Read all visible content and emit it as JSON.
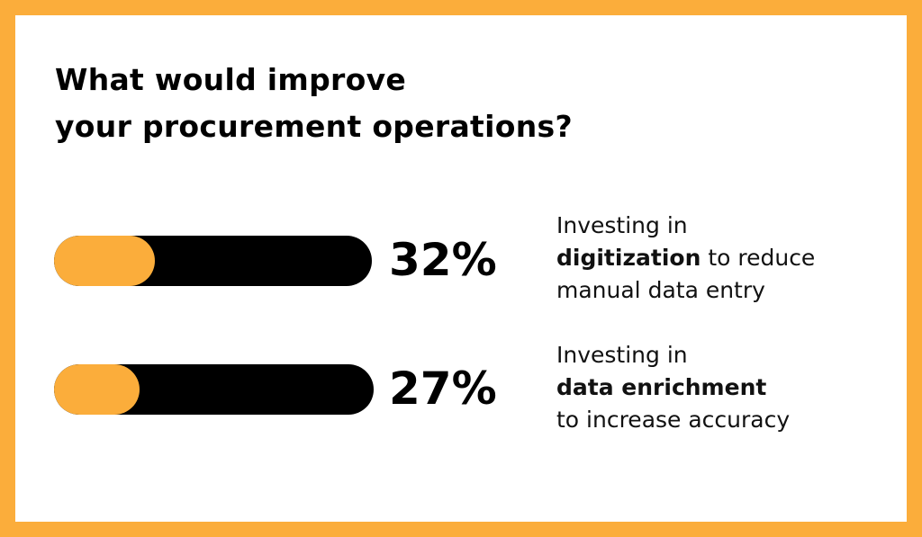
{
  "title": {
    "line1": "What would improve",
    "line2": "your procurement operations?"
  },
  "colors": {
    "accent": "#FBAD3B",
    "bar_track": "#000000",
    "background": "#FFFFFF"
  },
  "chart_data": {
    "type": "bar",
    "orientation": "horizontal",
    "categories": [
      "Investing in digitization to reduce manual data entry",
      "Investing in data enrichment to increase accuracy"
    ],
    "values": [
      32,
      27
    ],
    "unit": "%",
    "title": "What would improve your procurement operations?"
  },
  "items": [
    {
      "percent_label": "32%",
      "value": 32,
      "line1": "Investing in",
      "bold": "digitization",
      "rest": " to reduce",
      "line3": "manual data entry"
    },
    {
      "percent_label": "27%",
      "value": 27,
      "line1": "Investing in",
      "bold": "data enrichment",
      "rest": "",
      "line3": "to increase accuracy"
    }
  ]
}
